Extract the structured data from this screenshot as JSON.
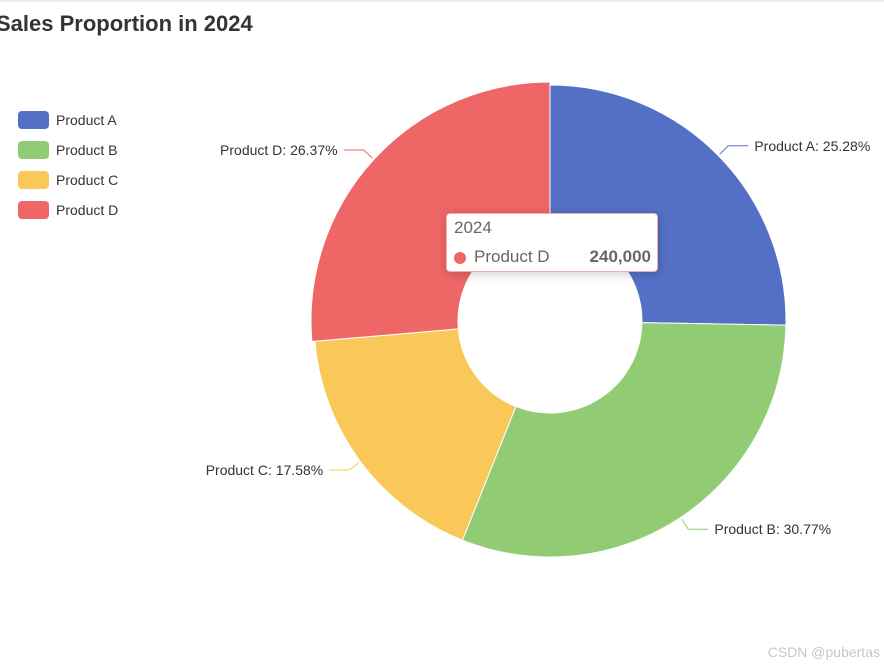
{
  "chart_data": {
    "type": "pie",
    "variant": "donut",
    "title": "Sales Proportion in 2024",
    "series_name": "2024",
    "label_format": "{name}: {percent}%",
    "slices": [
      {
        "name": "Product A",
        "percent": 25.28,
        "label": "Product A: 25.28%",
        "color": "#5470c6"
      },
      {
        "name": "Product B",
        "percent": 30.77,
        "label": "Product B: 30.77%",
        "color": "#91cc75"
      },
      {
        "name": "Product C",
        "percent": 17.58,
        "label": "Product C: 17.58%",
        "color": "#fac858"
      },
      {
        "name": "Product D",
        "percent": 26.37,
        "label": "Product D: 26.37%",
        "color": "#ee6666"
      }
    ],
    "legend_position": "top-left",
    "tooltip": {
      "title": "2024",
      "name": "Product D",
      "value": "240,000",
      "color": "#ee6666"
    }
  },
  "watermark": "CSDN @pubertas"
}
